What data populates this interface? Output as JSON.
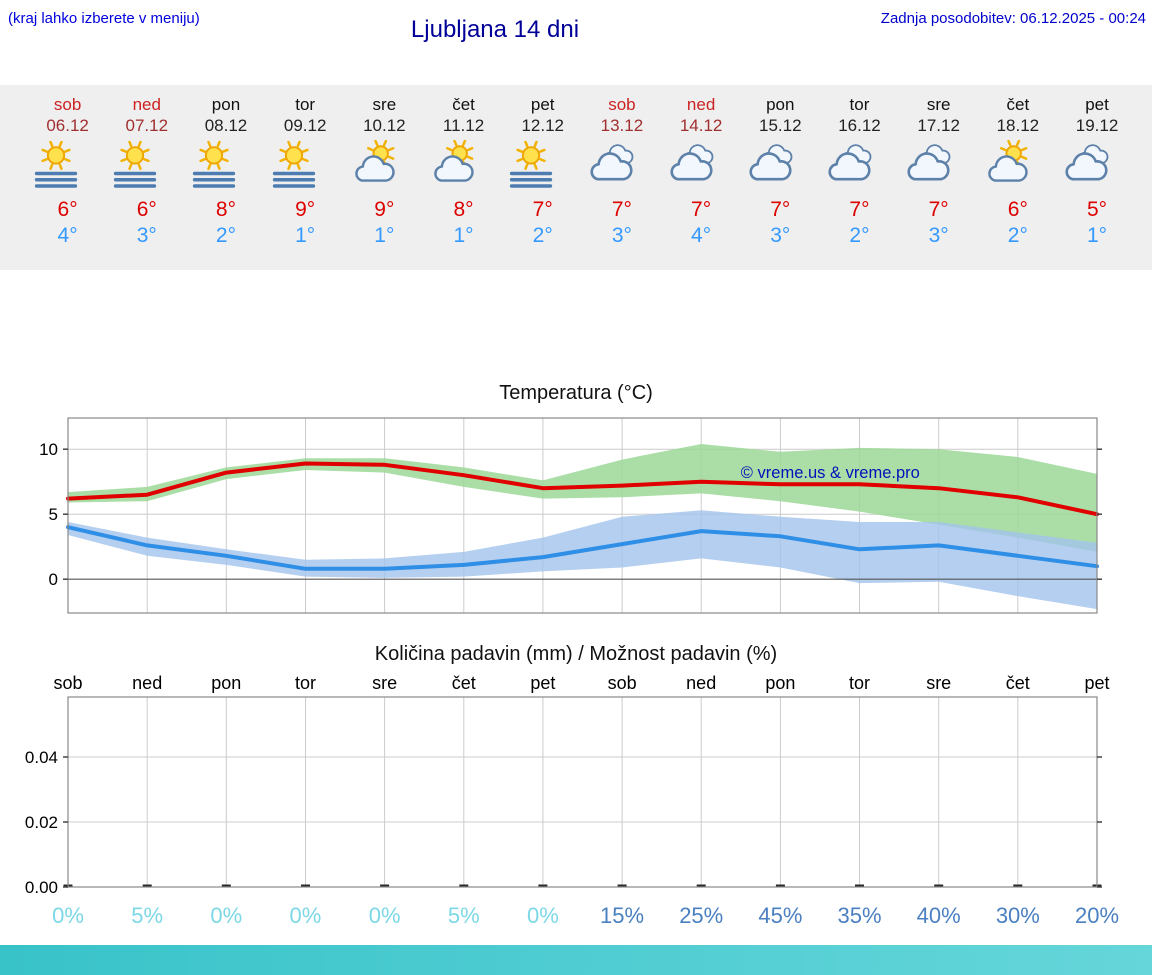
{
  "header": {
    "left_note": "(kraj lahko izberete v meniju)",
    "title": "Ljubljana 14 dni",
    "last_update": "Zadnja posodobitev: 06.12.2025 - 00:24"
  },
  "colors": {
    "accent_blue": "#0000cc",
    "weekend_red": "#cc2222",
    "high_temp_red": "#dd0000",
    "low_temp_blue": "#3399ff",
    "strip_bg": "#efefef",
    "footer_bar": "#3ec6cc"
  },
  "forecast": {
    "days": [
      {
        "name": "sob",
        "date": "06.12",
        "weekend": true,
        "icon": "sun-fog",
        "high": "6°",
        "low": "4°"
      },
      {
        "name": "ned",
        "date": "07.12",
        "weekend": true,
        "icon": "sun-fog",
        "high": "6°",
        "low": "3°"
      },
      {
        "name": "pon",
        "date": "08.12",
        "weekend": false,
        "icon": "sun-fog",
        "high": "8°",
        "low": "2°"
      },
      {
        "name": "tor",
        "date": "09.12",
        "weekend": false,
        "icon": "sun-fog",
        "high": "9°",
        "low": "1°"
      },
      {
        "name": "sre",
        "date": "10.12",
        "weekend": false,
        "icon": "sun-cloud",
        "high": "9°",
        "low": "1°"
      },
      {
        "name": "čet",
        "date": "11.12",
        "weekend": false,
        "icon": "sun-cloud",
        "high": "8°",
        "low": "1°"
      },
      {
        "name": "pet",
        "date": "12.12",
        "weekend": false,
        "icon": "sun-fog",
        "high": "7°",
        "low": "2°"
      },
      {
        "name": "sob",
        "date": "13.12",
        "weekend": true,
        "icon": "cloud",
        "high": "7°",
        "low": "3°"
      },
      {
        "name": "ned",
        "date": "14.12",
        "weekend": true,
        "icon": "cloud",
        "high": "7°",
        "low": "4°"
      },
      {
        "name": "pon",
        "date": "15.12",
        "weekend": false,
        "icon": "cloud",
        "high": "7°",
        "low": "3°"
      },
      {
        "name": "tor",
        "date": "16.12",
        "weekend": false,
        "icon": "cloud",
        "high": "7°",
        "low": "2°"
      },
      {
        "name": "sre",
        "date": "17.12",
        "weekend": false,
        "icon": "cloud",
        "high": "7°",
        "low": "3°"
      },
      {
        "name": "čet",
        "date": "18.12",
        "weekend": false,
        "icon": "sun-cloud",
        "high": "6°",
        "low": "2°"
      },
      {
        "name": "pet",
        "date": "19.12",
        "weekend": false,
        "icon": "cloud",
        "high": "5°",
        "low": "1°"
      }
    ]
  },
  "chart_data": [
    {
      "type": "line",
      "title": "Temperatura (°C)",
      "x_labels": [
        "sob",
        "ned",
        "pon",
        "tor",
        "sre",
        "čet",
        "pet",
        "sob",
        "ned",
        "pon",
        "tor",
        "sre",
        "čet",
        "pet"
      ],
      "yticks": [
        0,
        5,
        10
      ],
      "ylim": [
        -2.6,
        12.4
      ],
      "grid": true,
      "watermark": "© vreme.us & vreme.pro",
      "watermark_color": "#0011bb",
      "bands": [
        {
          "name": "high-range",
          "color": "#9bd896",
          "opacity": 0.85,
          "upper": [
            6.7,
            7.1,
            8.6,
            9.3,
            9.3,
            8.6,
            7.6,
            9.2,
            10.4,
            9.8,
            10.1,
            10.0,
            9.4,
            8.1
          ],
          "lower": [
            5.9,
            6.0,
            7.7,
            8.4,
            8.2,
            7.1,
            6.2,
            6.3,
            6.6,
            6.0,
            5.2,
            4.2,
            3.2,
            2.1
          ]
        },
        {
          "name": "low-range",
          "color": "#a3c3ec",
          "opacity": 0.8,
          "upper": [
            4.4,
            3.2,
            2.3,
            1.5,
            1.6,
            2.1,
            3.2,
            4.8,
            5.3,
            4.8,
            4.4,
            4.4,
            3.6,
            2.8
          ],
          "lower": [
            3.4,
            1.8,
            1.1,
            0.2,
            0.1,
            0.2,
            0.6,
            0.9,
            1.6,
            0.9,
            -0.3,
            -0.2,
            -1.3,
            -2.3
          ]
        }
      ],
      "series": [
        {
          "name": "high",
          "color": "#e00000",
          "values": [
            6.2,
            6.5,
            8.2,
            8.9,
            8.8,
            8.0,
            7.0,
            7.2,
            7.5,
            7.3,
            7.3,
            7.0,
            6.3,
            5.0
          ]
        },
        {
          "name": "low",
          "color": "#2f8fe6",
          "values": [
            4.0,
            2.6,
            1.8,
            0.8,
            0.8,
            1.1,
            1.7,
            2.7,
            3.7,
            3.3,
            2.3,
            2.6,
            1.8,
            1.0
          ]
        }
      ]
    },
    {
      "type": "bar",
      "title": "Količina padavin (mm) / Možnost padavin (%)",
      "x_labels": [
        "sob",
        "ned",
        "pon",
        "tor",
        "sre",
        "čet",
        "pet",
        "sob",
        "ned",
        "pon",
        "tor",
        "sre",
        "čet",
        "pet"
      ],
      "yticks": [
        0,
        0.02,
        0.04
      ],
      "ytick_labels": [
        "0.00",
        "0.02",
        "0.04"
      ],
      "values": [
        0,
        0,
        0,
        0,
        0,
        0,
        0,
        0,
        0,
        0,
        0,
        0,
        0,
        0
      ],
      "probabilities": [
        {
          "label": "0%",
          "color": "#7cd8e6"
        },
        {
          "label": "5%",
          "color": "#7cd8e6"
        },
        {
          "label": "0%",
          "color": "#7cd8e6"
        },
        {
          "label": "0%",
          "color": "#7cd8e6"
        },
        {
          "label": "0%",
          "color": "#7cd8e6"
        },
        {
          "label": "5%",
          "color": "#7cd8e6"
        },
        {
          "label": "0%",
          "color": "#7cd8e6"
        },
        {
          "label": "15%",
          "color": "#4a80c2"
        },
        {
          "label": "25%",
          "color": "#4a80c2"
        },
        {
          "label": "45%",
          "color": "#4a80c2"
        },
        {
          "label": "35%",
          "color": "#4a80c2"
        },
        {
          "label": "40%",
          "color": "#4a80c2"
        },
        {
          "label": "30%",
          "color": "#4a80c2"
        },
        {
          "label": "20%",
          "color": "#4a80c2"
        }
      ]
    }
  ]
}
